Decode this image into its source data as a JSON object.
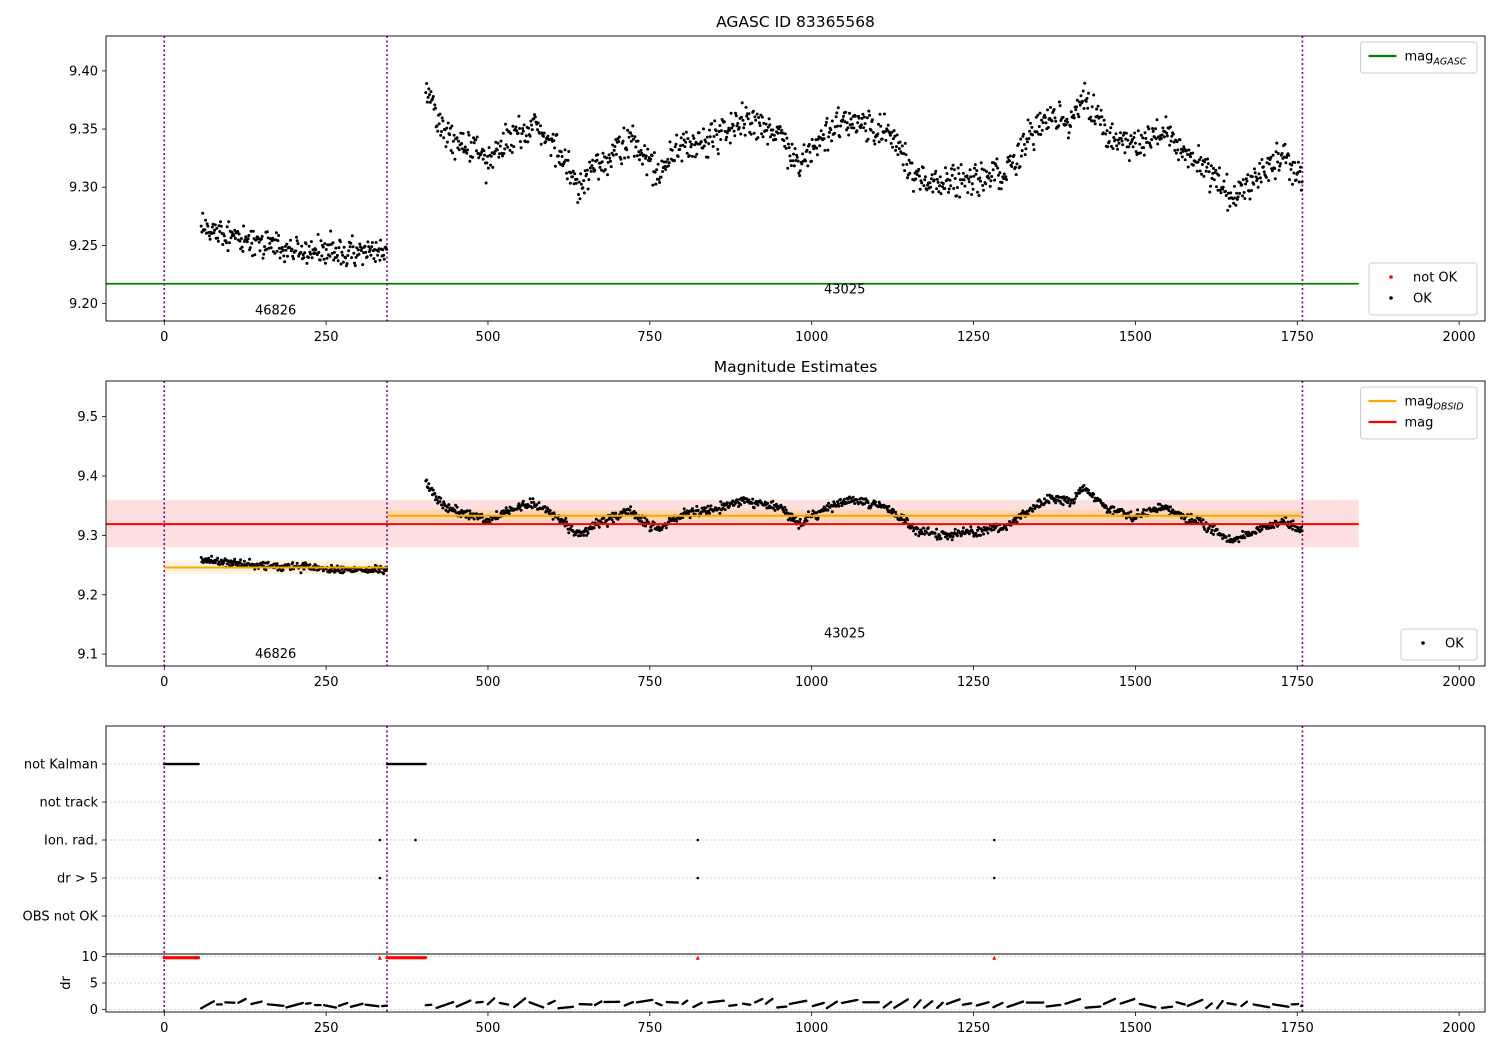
{
  "chart_data": [
    {
      "type": "scatter",
      "title": "AGASC ID 83365568",
      "xlim": [
        -90,
        2040
      ],
      "ylim": [
        9.185,
        9.43
      ],
      "xticks": [
        0,
        250,
        500,
        750,
        1000,
        1250,
        1500,
        1750,
        2000
      ],
      "yticks": [
        "9.20",
        "9.25",
        "9.30",
        "9.35",
        "9.40"
      ],
      "grid": false,
      "obs_boundaries": [
        0,
        344,
        1758
      ],
      "obsid_labels": [
        {
          "text": "46826",
          "x": 172,
          "y": 9.194
        },
        {
          "text": "43025",
          "x": 1051,
          "y": 9.212
        }
      ],
      "segments": [
        {
          "x_start": 57,
          "x_end": 344,
          "trend": [
            [
              57,
              9.265
            ],
            [
              150,
              9.252
            ],
            [
              250,
              9.245
            ],
            [
              344,
              9.243
            ]
          ],
          "spread": 0.012
        },
        {
          "x_start": 404,
          "x_end": 1758,
          "trend": [
            [
              404,
              9.39
            ],
            [
              430,
              9.35
            ],
            [
              470,
              9.335
            ],
            [
              500,
              9.325
            ],
            [
              540,
              9.345
            ],
            [
              570,
              9.355
            ],
            [
              600,
              9.335
            ],
            [
              640,
              9.3
            ],
            [
              680,
              9.325
            ],
            [
              720,
              9.34
            ],
            [
              760,
              9.31
            ],
            [
              800,
              9.335
            ],
            [
              850,
              9.345
            ],
            [
              900,
              9.36
            ],
            [
              950,
              9.345
            ],
            [
              980,
              9.32
            ],
            [
              1020,
              9.345
            ],
            [
              1060,
              9.36
            ],
            [
              1120,
              9.345
            ],
            [
              1160,
              9.31
            ],
            [
              1200,
              9.3
            ],
            [
              1240,
              9.305
            ],
            [
              1300,
              9.315
            ],
            [
              1340,
              9.345
            ],
            [
              1370,
              9.365
            ],
            [
              1400,
              9.355
            ],
            [
              1420,
              9.38
            ],
            [
              1460,
              9.345
            ],
            [
              1500,
              9.33
            ],
            [
              1540,
              9.35
            ],
            [
              1580,
              9.33
            ],
            [
              1620,
              9.31
            ],
            [
              1650,
              9.29
            ],
            [
              1700,
              9.315
            ],
            [
              1730,
              9.325
            ],
            [
              1758,
              9.305
            ]
          ],
          "spread": 0.014
        }
      ],
      "hlines": [
        {
          "name": "mag_AGASC",
          "y": 9.217,
          "xmin": -90,
          "xmax": 1845,
          "color": "#008000"
        }
      ],
      "legends": [
        {
          "position": "upper right",
          "entries": [
            {
              "label": "mag",
              "sub": "AGASC",
              "color": "#008000",
              "marker": "line"
            }
          ]
        },
        {
          "position": "lower right",
          "entries": [
            {
              "label": "not OK",
              "color": "#ff0000",
              "marker": "dot"
            },
            {
              "label": "OK",
              "color": "#000000",
              "marker": "dot"
            }
          ]
        }
      ]
    },
    {
      "type": "scatter",
      "title": "Magnitude Estimates",
      "xlim": [
        -90,
        2040
      ],
      "ylim": [
        9.08,
        9.56
      ],
      "xticks": [
        0,
        250,
        500,
        750,
        1000,
        1250,
        1500,
        1750,
        2000
      ],
      "yticks": [
        "9.1",
        "9.2",
        "9.3",
        "9.4",
        "9.5"
      ],
      "grid": false,
      "obs_boundaries": [
        0,
        344,
        1758
      ],
      "obsid_labels": [
        {
          "text": "46826",
          "x": 172,
          "y": 9.1
        },
        {
          "text": "43025",
          "x": 1051,
          "y": 9.135
        }
      ],
      "bands": [
        {
          "name": "mag range",
          "x0": -90,
          "x1": 1845,
          "y0": 9.28,
          "y1": 9.36,
          "color": "#ff0000",
          "opacity": 0.12
        },
        {
          "name": "mag_OBSID 46826 range",
          "x0": 0,
          "x1": 344,
          "y0": 9.235,
          "y1": 9.258,
          "color": "#ffa500",
          "opacity": 0.12
        },
        {
          "name": "mag_OBSID 43025 range",
          "x0": 344,
          "x1": 1758,
          "y0": 9.323,
          "y1": 9.343,
          "color": "#ffa500",
          "opacity": 0.2
        }
      ],
      "hlines": [
        {
          "name": "mag",
          "y": 9.319,
          "xmin": -90,
          "xmax": 1845,
          "color": "#ff0000"
        },
        {
          "name": "mag_OBSID 46826",
          "y": 9.246,
          "xmin": 0,
          "xmax": 344,
          "color": "#ffa500"
        },
        {
          "name": "mag_OBSID 43025",
          "y": 9.333,
          "xmin": 344,
          "xmax": 1758,
          "color": "#ffa500"
        }
      ],
      "legends": [
        {
          "position": "upper right",
          "entries": [
            {
              "label": "mag",
              "sub": "OBSID",
              "color": "#ffa500",
              "marker": "line"
            },
            {
              "label": "mag",
              "sub": "",
              "color": "#ff0000",
              "marker": "line"
            }
          ]
        },
        {
          "position": "lower right",
          "entries": [
            {
              "label": "OK",
              "color": "#000000",
              "marker": "dot"
            }
          ]
        }
      ]
    },
    {
      "type": "scatter",
      "title": "",
      "xlim": [
        -90,
        2040
      ],
      "xticks": [
        0,
        250,
        500,
        750,
        1000,
        1250,
        1500,
        1750,
        2000
      ],
      "obs_boundaries": [
        0,
        344,
        1758
      ],
      "flag_rows": [
        "not Kalman",
        "not track",
        "Ion. rad.",
        "dr > 5",
        "OBS not OK"
      ],
      "flags": {
        "not Kalman": [
          [
            0,
            55
          ],
          [
            344,
            404
          ]
        ],
        "not track": [],
        "Ion. rad.": [
          333,
          388,
          824,
          1282
        ],
        "dr > 5": [
          333,
          824,
          1282
        ],
        "OBS not OK": []
      },
      "dr_ylabel": "dr",
      "dr_yticks": [
        "0",
        "5",
        "10"
      ],
      "dr_ylim": [
        -0.5,
        10.5
      ],
      "dr_not_ok": {
        "y": 9.8,
        "ranges": [
          [
            0,
            55
          ],
          [
            344,
            404
          ]
        ],
        "points": [
          333,
          824,
          1282
        ]
      },
      "dr_ok_segments": [
        [
          57,
          344
        ],
        [
          404,
          1758
        ]
      ],
      "colors": {
        "ok": "#000000",
        "not_ok": "#ff0000",
        "boundary": "#800080"
      }
    }
  ]
}
